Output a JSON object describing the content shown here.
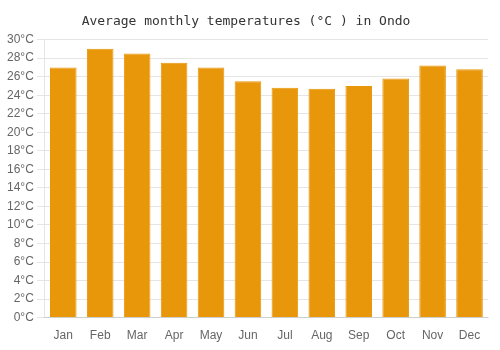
{
  "chart_data": {
    "type": "bar",
    "title": "Average monthly temperatures (°C ) in Ondo",
    "categories": [
      "Jan",
      "Feb",
      "Mar",
      "Apr",
      "May",
      "Jun",
      "Jul",
      "Aug",
      "Sep",
      "Oct",
      "Nov",
      "Dec"
    ],
    "values": [
      27.0,
      29.0,
      28.5,
      27.5,
      27.0,
      25.5,
      24.8,
      24.7,
      25.0,
      25.8,
      27.2,
      26.8
    ],
    "color": "#E8960A",
    "ylim": [
      0,
      30
    ],
    "yticks": [
      {
        "value": 0,
        "label": "0°C"
      },
      {
        "value": 2,
        "label": "2°C"
      },
      {
        "value": 4,
        "label": "4°C"
      },
      {
        "value": 6,
        "label": "6°C"
      },
      {
        "value": 8,
        "label": "8°C"
      },
      {
        "value": 10,
        "label": "10°C"
      },
      {
        "value": 12,
        "label": "12°C"
      },
      {
        "value": 14,
        "label": "14°C"
      },
      {
        "value": 16,
        "label": "16°C"
      },
      {
        "value": 18,
        "label": "18°C"
      },
      {
        "value": 20,
        "label": "20°C"
      },
      {
        "value": 22,
        "label": "22°C"
      },
      {
        "value": 24,
        "label": "24°C"
      },
      {
        "value": 26,
        "label": "26°C"
      },
      {
        "value": 28,
        "label": "28°C"
      },
      {
        "value": 30,
        "label": "30°C"
      }
    ],
    "grid": true
  }
}
